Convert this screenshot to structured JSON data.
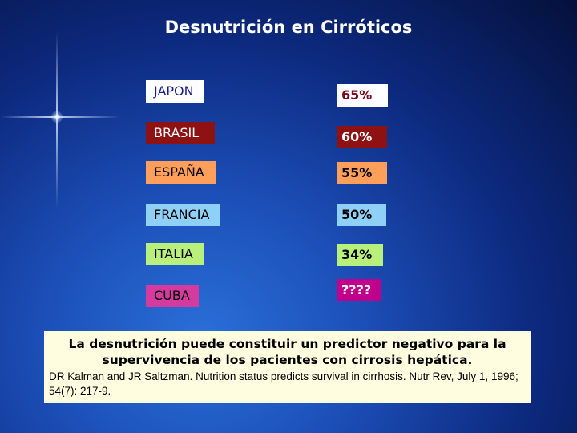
{
  "title": "Desnutrición en Cirróticos",
  "rows": [
    {
      "country": "JAPON",
      "pct": "65%",
      "country_bg": "#ffffff",
      "country_fg": "#1a1a8c",
      "pct_bg": "#ffffff",
      "pct_fg": "#7a0a20"
    },
    {
      "country": "BRASIL",
      "pct": "60%",
      "country_bg": "#8e1212",
      "country_fg": "#ffffff",
      "pct_bg": "#8e1212",
      "pct_fg": "#ffffff"
    },
    {
      "country": "ESPAÑA",
      "pct": "55%",
      "country_bg": "#ff9f5a",
      "country_fg": "#000000",
      "pct_bg": "#ff9f5a",
      "pct_fg": "#000000"
    },
    {
      "country": "FRANCIA",
      "pct": "50%",
      "country_bg": "#8fd0f7",
      "country_fg": "#000000",
      "pct_bg": "#8fd0f7",
      "pct_fg": "#000000"
    },
    {
      "country": "ITALIA",
      "pct": "34%",
      "country_bg": "#b8f07c",
      "country_fg": "#000000",
      "pct_bg": "#b8f07c",
      "pct_fg": "#000000"
    },
    {
      "country": "CUBA",
      "pct": "????",
      "country_bg": "#d53a9e",
      "country_fg": "#000000",
      "pct_bg": "#c0008c",
      "pct_fg": "#ffffff"
    }
  ],
  "note": {
    "main": "La desnutrición puede constituir un predictor negativo para la supervivencia de los  pacientes con cirrosis hepática.",
    "ref": "DR Kalman and JR Saltzman. Nutrition status predicts survival in cirrhosis. Nutr Rev, July 1, 1996; 54(7): 217-9."
  }
}
